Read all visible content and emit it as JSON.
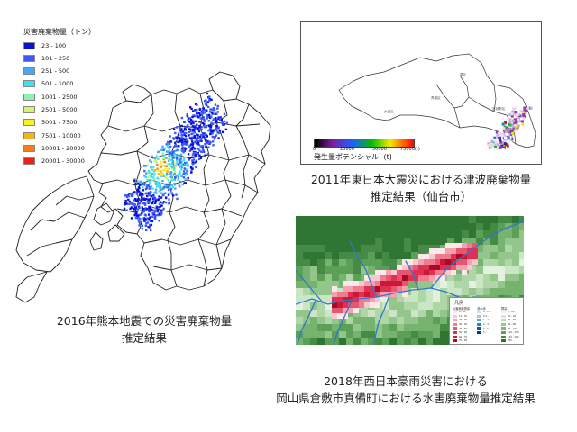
{
  "kumamoto": {
    "legend_title": "災害廃棄物量（トン）",
    "legend": [
      {
        "label": "23 - 100",
        "color": "#0a12d8"
      },
      {
        "label": "101 - 250",
        "color": "#3a5cf5"
      },
      {
        "label": "251 - 500",
        "color": "#46a8f5"
      },
      {
        "label": "501 - 1000",
        "color": "#35e6f2"
      },
      {
        "label": "1001 - 2500",
        "color": "#8ef0b4"
      },
      {
        "label": "2501 - 5000",
        "color": "#d2f56a"
      },
      {
        "label": "5001 - 7500",
        "color": "#f6f21e"
      },
      {
        "label": "7501 - 10000",
        "color": "#f7b419"
      },
      {
        "label": "10001 - 20000",
        "color": "#f57e14"
      },
      {
        "label": "20001 - 30000",
        "color": "#f21e1e"
      }
    ],
    "caption_line1": "2016年熊本地震での災害廃棄物量",
    "caption_line2": "推定結果"
  },
  "sendai": {
    "colorbar_ticks": [
      "0",
      "25000",
      "50000",
      "75000"
    ],
    "colorbar_max_unit": "(t)",
    "colorbar_label": "発生量ポテンシャル",
    "colorbar_unit": "(t)",
    "place_labels": [
      "泉区",
      "青葉区",
      "宮城野区",
      "若林区",
      "太白区"
    ],
    "caption_line1": "2011年東日本大震災における津波廃棄物量",
    "caption_line2": "推定結果（仙台市）"
  },
  "okayama": {
    "legend_title": "凡例",
    "legend_headers": [
      "災害廃棄物量",
      "浸水深",
      "標高"
    ],
    "legend_col1": [
      "0 - 10",
      "10 - 20",
      "20 - 30",
      "30 - 40",
      "40 - 50",
      "50 - 60",
      "60 - 70",
      "70 - 80"
    ],
    "legend_col2": [
      "0 - 0.5",
      "0.5 - 1",
      "1 - 2",
      "2 - 3",
      "3 - 5",
      "5 -"
    ],
    "legend_col3": [
      "0 - 20",
      "20 - 40",
      "40 - 60",
      "60 - 80",
      "80 - 100",
      "100 - 150",
      "150 - 200",
      "200 -"
    ],
    "caption_line1": "2018年西日本豪雨災害における",
    "caption_line2": "岡山県倉敷市真備町における水害廃棄物量推定結果"
  }
}
